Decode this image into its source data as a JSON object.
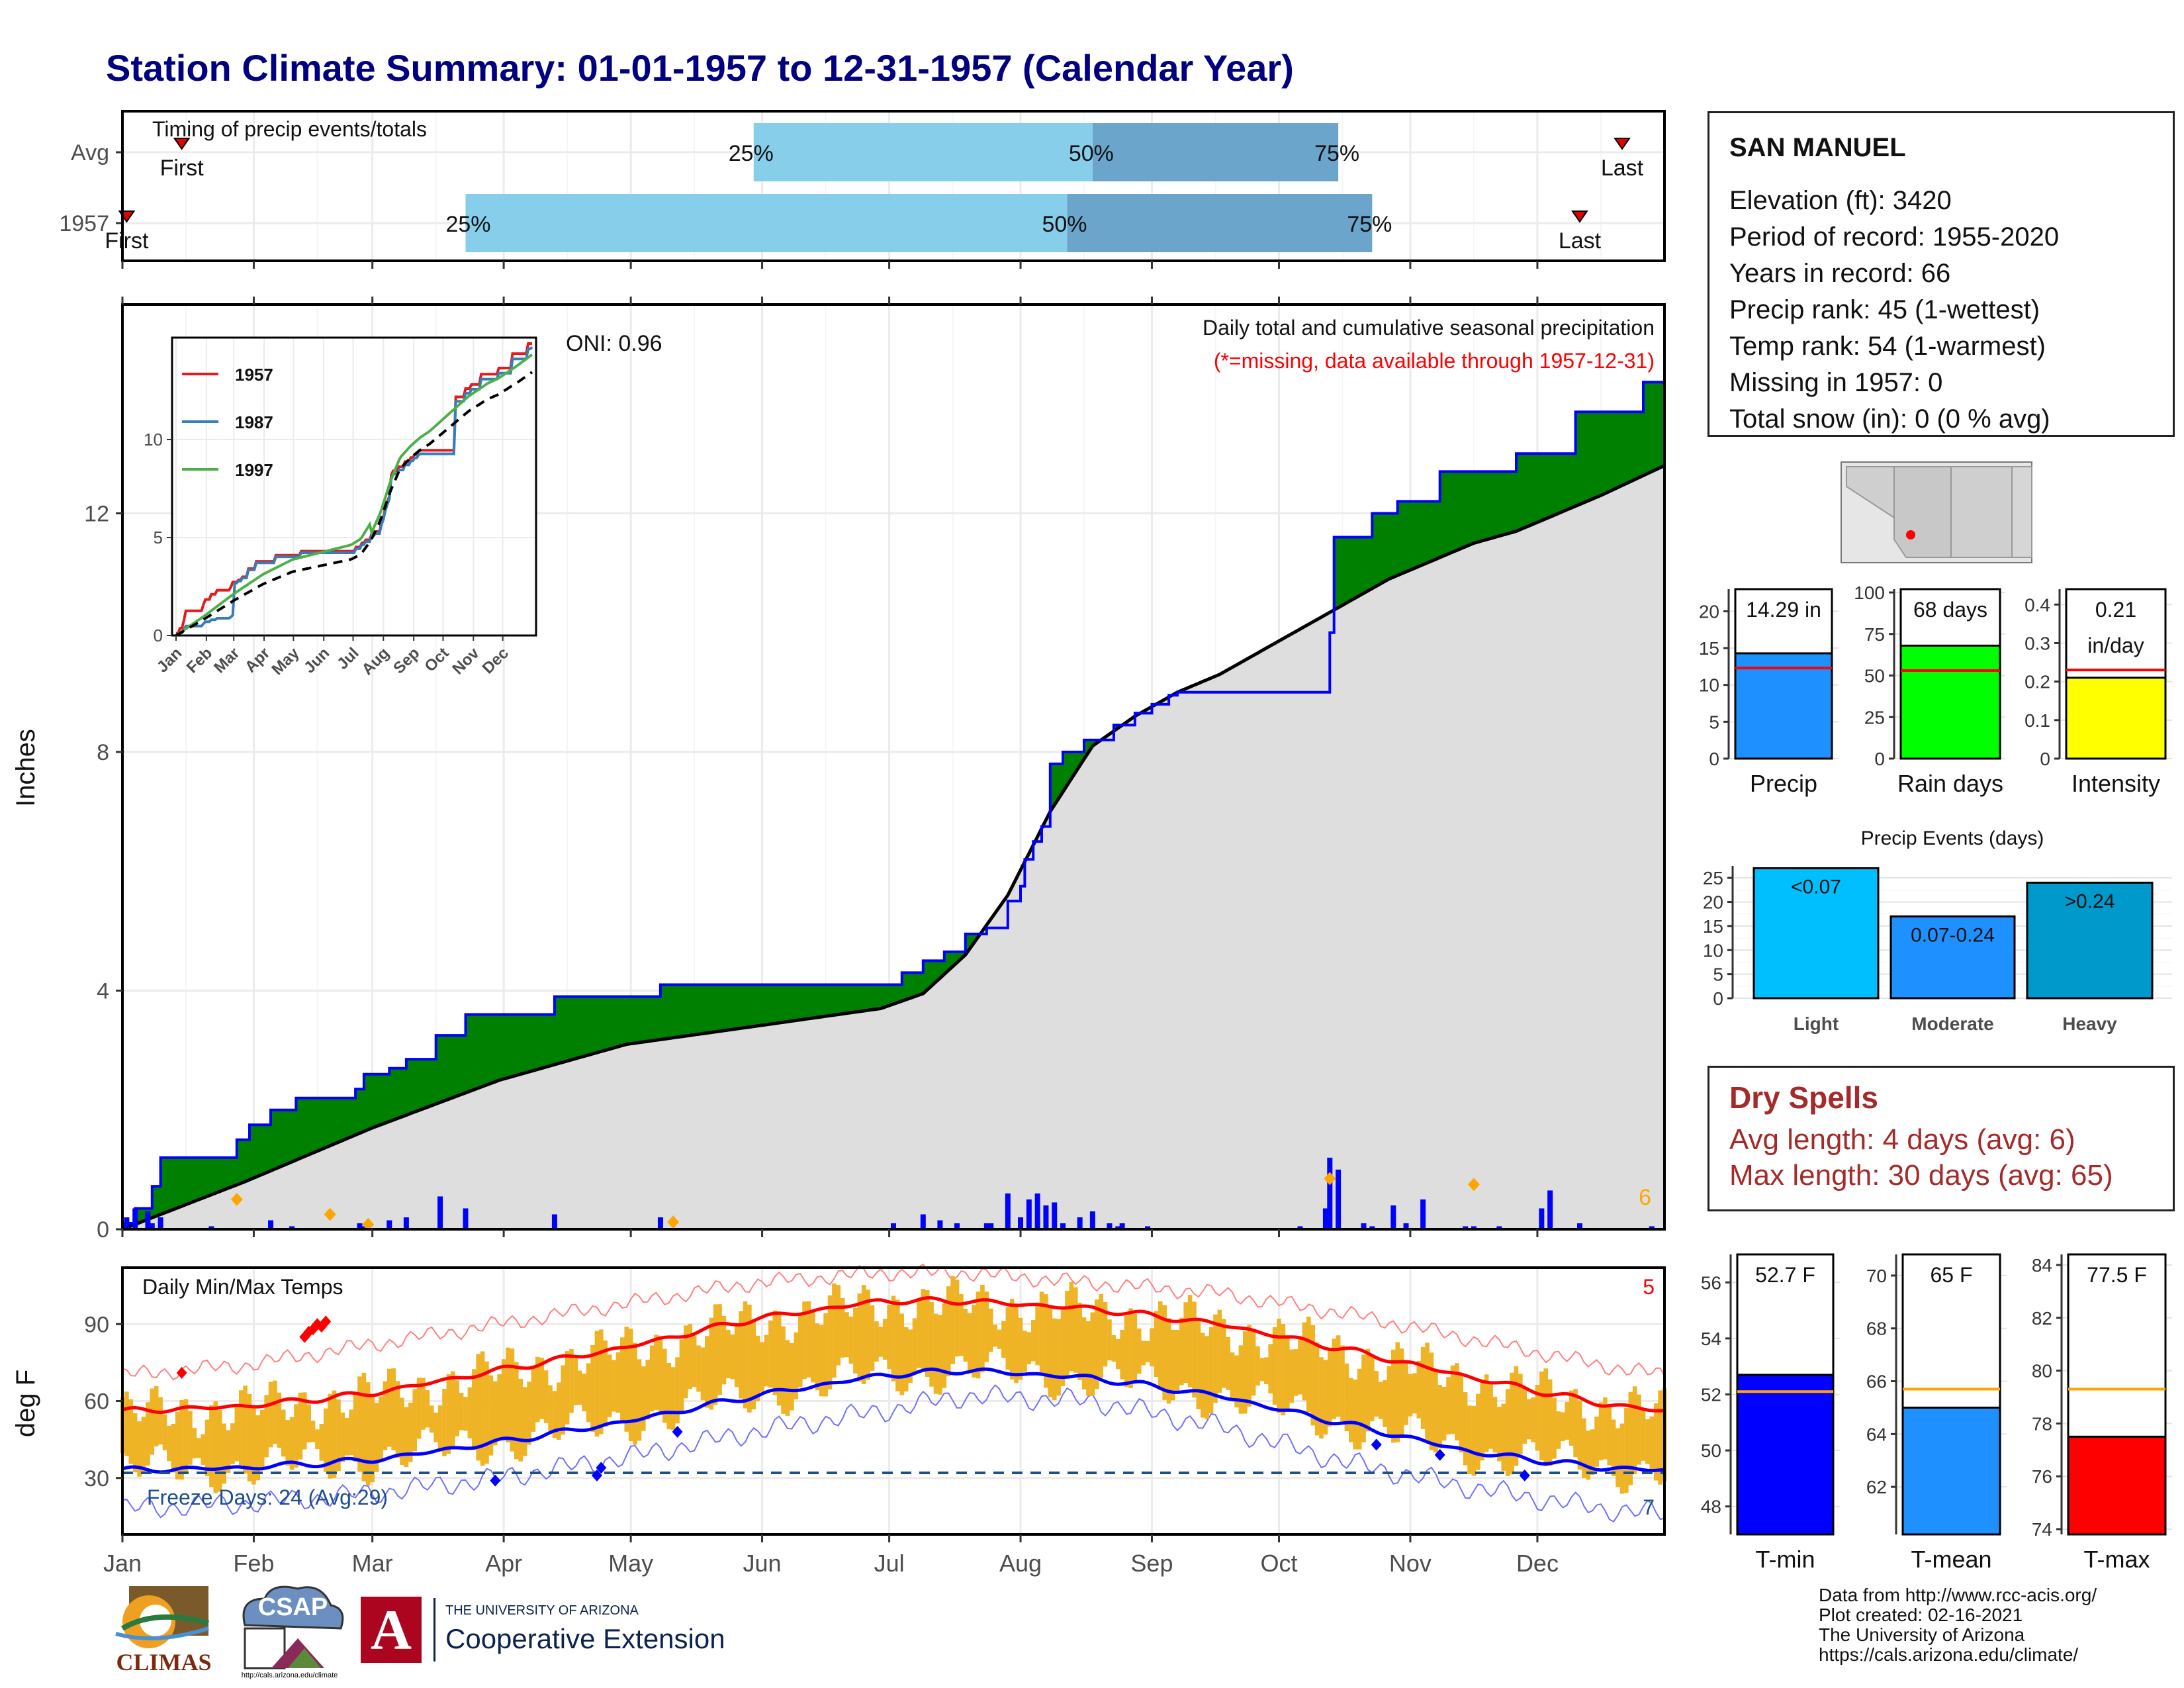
{
  "title": "Station Climate Summary: 01-01-1957 to 12-31-1957 (Calendar Year)",
  "colors": {
    "title": "#000080",
    "lightblue": "#87ceeb",
    "midblue": "#6ca5cc",
    "green": "#008000",
    "brown": "#8b5a00",
    "normal_fill": "#dedede",
    "precip_bar": "#0000ff",
    "marker": "#ffa500",
    "tmax": "#ff0000",
    "tmin": "#0000ff",
    "range": "#efb326",
    "precip_ind": "#1e90ff",
    "raindays_ind": "#00ff00",
    "intensity_ind": "#ffff00",
    "events": "#00bfff",
    "tmean_ind": "#1e90ff",
    "dry": "#a52a2a"
  },
  "station": {
    "name": "SAN MANUEL",
    "lines": [
      "Elevation (ft): 3420",
      "Period of record: 1955-2020",
      "Years in record: 66",
      "Precip rank: 45 (1-wettest)",
      "Temp rank: 54 (1-warmest)",
      "Missing in 1957: 0",
      "Total snow (in): 0 (0 % avg)"
    ]
  },
  "dry_spells": {
    "title": "Dry Spells",
    "avg_line": "Avg length: 4 days (avg: 6)",
    "max_line": "Max length: 30 days (avg: 65)"
  },
  "credits": [
    "Data from http://www.rcc-acis.org/",
    "Plot created: 02-16-2021",
    "The University of Arizona",
    "https://cals.arizona.edu/climate/"
  ],
  "logos": {
    "climas": "CLIMAS",
    "csap": "CSAP",
    "csap_url": "http://cals.arizona.edu/climate",
    "ua_small": "THE UNIVERSITY OF ARIZONA",
    "ua_big": "Cooperative Extension",
    "ua_letter": "A"
  },
  "chart_data": [
    {
      "type": "bar",
      "panel": "timing",
      "title": "Timing of precip events/totals",
      "y_categories": [
        "Avg",
        "1957"
      ],
      "rows": [
        {
          "label": "Avg",
          "first_doy": 15,
          "p25_doy": 150,
          "p50_doy": 230,
          "p75_doy": 288,
          "last_doy": 355
        },
        {
          "label": "1957",
          "first_doy": 2,
          "p25_doy": 82,
          "p50_doy": 224,
          "p75_doy": 296,
          "last_doy": 345
        }
      ],
      "marker_labels": {
        "first": "First",
        "last": "Last",
        "p25": "25%",
        "p50": "50%",
        "p75": "75%"
      }
    },
    {
      "type": "area",
      "panel": "cumulative_precip",
      "title": "Daily total and cumulative seasonal precipitation",
      "subtitle": "(*=missing, data available through 1957-12-31)",
      "ylabel": "Inches",
      "ylim": [
        0,
        15.5
      ],
      "yticks": [
        0,
        4,
        8,
        12
      ],
      "oni": "ONI: 0.96",
      "count_label": "6",
      "observed_cumulative": [
        [
          1,
          0.1
        ],
        [
          4,
          0.35
        ],
        [
          8,
          0.72
        ],
        [
          10,
          1.2
        ],
        [
          28,
          1.5
        ],
        [
          31,
          1.75
        ],
        [
          36,
          2.0
        ],
        [
          42,
          2.2
        ],
        [
          56,
          2.35
        ],
        [
          58,
          2.6
        ],
        [
          64,
          2.7
        ],
        [
          68,
          2.85
        ],
        [
          75,
          3.25
        ],
        [
          82,
          3.6
        ],
        [
          103,
          3.9
        ],
        [
          128,
          4.1
        ],
        [
          185,
          4.3
        ],
        [
          190,
          4.5
        ],
        [
          195,
          4.65
        ],
        [
          200,
          4.95
        ],
        [
          205,
          5.05
        ],
        [
          210,
          5.5
        ],
        [
          213,
          5.75
        ],
        [
          214,
          6.2
        ],
        [
          216,
          6.5
        ],
        [
          218,
          6.75
        ],
        [
          220,
          7.8
        ],
        [
          223,
          8.0
        ],
        [
          228,
          8.2
        ],
        [
          235,
          8.45
        ],
        [
          240,
          8.65
        ],
        [
          244,
          8.8
        ],
        [
          248,
          8.95
        ],
        [
          250,
          9.0
        ],
        [
          286,
          10.0
        ],
        [
          287,
          11.6
        ],
        [
          296,
          12.0
        ],
        [
          302,
          12.2
        ],
        [
          312,
          12.7
        ],
        [
          330,
          13.0
        ],
        [
          344,
          13.7
        ],
        [
          360,
          14.2
        ],
        [
          365,
          14.29
        ]
      ],
      "normal_cumulative": [
        [
          1,
          0.0
        ],
        [
          30,
          0.8
        ],
        [
          60,
          1.7
        ],
        [
          90,
          2.5
        ],
        [
          120,
          3.1
        ],
        [
          150,
          3.4
        ],
        [
          180,
          3.7
        ],
        [
          190,
          3.95
        ],
        [
          200,
          4.6
        ],
        [
          210,
          5.6
        ],
        [
          220,
          7.0
        ],
        [
          230,
          8.1
        ],
        [
          240,
          8.6
        ],
        [
          250,
          9.0
        ],
        [
          260,
          9.3
        ],
        [
          270,
          9.7
        ],
        [
          280,
          10.1
        ],
        [
          290,
          10.5
        ],
        [
          300,
          10.9
        ],
        [
          310,
          11.2
        ],
        [
          320,
          11.5
        ],
        [
          330,
          11.7
        ],
        [
          340,
          12.0
        ],
        [
          350,
          12.3
        ],
        [
          365,
          12.8
        ]
      ],
      "daily_precip": [
        [
          2,
          0.2
        ],
        [
          4,
          0.35
        ],
        [
          7,
          0.3
        ],
        [
          8,
          0.1
        ],
        [
          10,
          0.2
        ],
        [
          22,
          0.05
        ],
        [
          36,
          0.15
        ],
        [
          41,
          0.05
        ],
        [
          57,
          0.1
        ],
        [
          58,
          0.05
        ],
        [
          64,
          0.15
        ],
        [
          68,
          0.2
        ],
        [
          76,
          0.55
        ],
        [
          82,
          0.35
        ],
        [
          103,
          0.25
        ],
        [
          128,
          0.2
        ],
        [
          183,
          0.1
        ],
        [
          190,
          0.25
        ],
        [
          194,
          0.15
        ],
        [
          198,
          0.1
        ],
        [
          205,
          0.1
        ],
        [
          206,
          0.1
        ],
        [
          210,
          0.6
        ],
        [
          213,
          0.2
        ],
        [
          215,
          0.5
        ],
        [
          217,
          0.6
        ],
        [
          219,
          0.4
        ],
        [
          221,
          0.45
        ],
        [
          223,
          0.1
        ],
        [
          227,
          0.2
        ],
        [
          230,
          0.3
        ],
        [
          234,
          0.1
        ],
        [
          236,
          0.05
        ],
        [
          237,
          0.1
        ],
        [
          243,
          0.05
        ],
        [
          279,
          0.05
        ],
        [
          285,
          0.35
        ],
        [
          286,
          1.2
        ],
        [
          288,
          1.0
        ],
        [
          294,
          0.1
        ],
        [
          296,
          0.05
        ],
        [
          301,
          0.4
        ],
        [
          304,
          0.1
        ],
        [
          308,
          0.5
        ],
        [
          318,
          0.05
        ],
        [
          320,
          0.05
        ],
        [
          326,
          0.05
        ],
        [
          336,
          0.35
        ],
        [
          338,
          0.65
        ],
        [
          345,
          0.1
        ],
        [
          362,
          0.05
        ]
      ],
      "orange_markers": [
        [
          28,
          0.5
        ],
        [
          50,
          0.25
        ],
        [
          59,
          0.08
        ],
        [
          131,
          0.12
        ],
        [
          286,
          0.85
        ],
        [
          320,
          0.75
        ]
      ]
    },
    {
      "type": "line",
      "panel": "inset_cumulative",
      "series": [
        {
          "name": "1957"
        },
        {
          "name": "1987"
        },
        {
          "name": "1997"
        }
      ],
      "ylim": [
        0,
        15
      ],
      "yticks": [
        0,
        5,
        10
      ],
      "xticks": [
        "Jan",
        "Feb",
        "Mar",
        "Apr",
        "May",
        "Jun",
        "Jul",
        "Aug",
        "Sep",
        "Oct",
        "Nov",
        "Dec"
      ]
    },
    {
      "type": "line",
      "panel": "daily_temps",
      "title": "Daily Min/Max Temps",
      "ylabel": "deg F",
      "ylim": [
        8,
        112
      ],
      "yticks": [
        30,
        60,
        90
      ],
      "freeze_line": 32,
      "freeze_label": "Freeze Days: 24 (Avg:29)",
      "count_top": "5",
      "count_bottom": "7",
      "avg_max": [
        [
          1,
          56
        ],
        [
          30,
          58
        ],
        [
          60,
          63
        ],
        [
          90,
          72
        ],
        [
          120,
          81
        ],
        [
          150,
          92
        ],
        [
          180,
          99
        ],
        [
          200,
          99
        ],
        [
          230,
          96
        ],
        [
          260,
          90
        ],
        [
          290,
          80
        ],
        [
          320,
          69
        ],
        [
          350,
          59
        ],
        [
          365,
          56
        ]
      ],
      "avg_min": [
        [
          1,
          33
        ],
        [
          30,
          34
        ],
        [
          60,
          37
        ],
        [
          90,
          44
        ],
        [
          120,
          52
        ],
        [
          150,
          62
        ],
        [
          180,
          70
        ],
        [
          200,
          72
        ],
        [
          230,
          69
        ],
        [
          260,
          62
        ],
        [
          290,
          51
        ],
        [
          320,
          40
        ],
        [
          350,
          34
        ],
        [
          365,
          33
        ]
      ],
      "rec_max": [
        [
          1,
          70
        ],
        [
          30,
          74
        ],
        [
          60,
          82
        ],
        [
          90,
          90
        ],
        [
          120,
          98
        ],
        [
          150,
          106
        ],
        [
          180,
          110
        ],
        [
          200,
          110
        ],
        [
          230,
          106
        ],
        [
          260,
          102
        ],
        [
          290,
          94
        ],
        [
          320,
          84
        ],
        [
          350,
          74
        ],
        [
          365,
          70
        ]
      ],
      "rec_min": [
        [
          1,
          18
        ],
        [
          30,
          20
        ],
        [
          60,
          24
        ],
        [
          90,
          30
        ],
        [
          120,
          38
        ],
        [
          150,
          48
        ],
        [
          180,
          56
        ],
        [
          200,
          62
        ],
        [
          230,
          60
        ],
        [
          260,
          50
        ],
        [
          290,
          36
        ],
        [
          320,
          26
        ],
        [
          350,
          18
        ],
        [
          365,
          16
        ]
      ]
    },
    {
      "type": "bar",
      "panel": "indicators",
      "items": [
        {
          "name": "Precip",
          "label": "14.29 in",
          "value": 14.29,
          "avg": 12.3,
          "ylim": [
            0,
            23
          ],
          "yticks": [
            0,
            5,
            10,
            15,
            20
          ]
        },
        {
          "name": "Rain days",
          "label": "68 days",
          "value": 68,
          "avg": 53,
          "ylim": [
            0,
            102
          ],
          "yticks": [
            0,
            25,
            50,
            75,
            100
          ]
        },
        {
          "name": "Intensity",
          "label": "0.21",
          "label2": "in/day",
          "value": 0.21,
          "avg": 0.23,
          "ylim": [
            0,
            0.44
          ],
          "yticks": [
            0.0,
            0.1,
            0.2,
            0.3,
            0.4
          ]
        }
      ]
    },
    {
      "type": "bar",
      "panel": "precip_events",
      "title": "Precip Events (days)",
      "categories": [
        "Light",
        "Moderate",
        "Heavy"
      ],
      "labels": [
        "<0.07",
        "0.07-0.24",
        ">0.24"
      ],
      "values": [
        27,
        17,
        24
      ],
      "ylim": [
        0,
        27.5
      ],
      "yticks": [
        0,
        5,
        10,
        15,
        20,
        25
      ]
    },
    {
      "type": "bar",
      "panel": "temp_indicators",
      "items": [
        {
          "name": "T-min",
          "label": "52.7 F",
          "value": 52.7,
          "avg": 52.1,
          "ylim": [
            47,
            57
          ],
          "yticks": [
            48,
            50,
            52,
            54,
            56
          ]
        },
        {
          "name": "T-mean",
          "label": "65 F",
          "value": 65,
          "avg": 65.7,
          "ylim": [
            60.2,
            70.8
          ],
          "yticks": [
            62,
            64,
            66,
            68,
            70
          ]
        },
        {
          "name": "T-max",
          "label": "77.5 F",
          "value": 77.5,
          "avg": 79.3,
          "ylim": [
            73.8,
            84.4
          ],
          "yticks": [
            74,
            76,
            78,
            80,
            82,
            84
          ]
        }
      ]
    }
  ],
  "months": [
    "Jan",
    "Feb",
    "Mar",
    "Apr",
    "May",
    "Jun",
    "Jul",
    "Aug",
    "Sep",
    "Oct",
    "Nov",
    "Dec"
  ]
}
